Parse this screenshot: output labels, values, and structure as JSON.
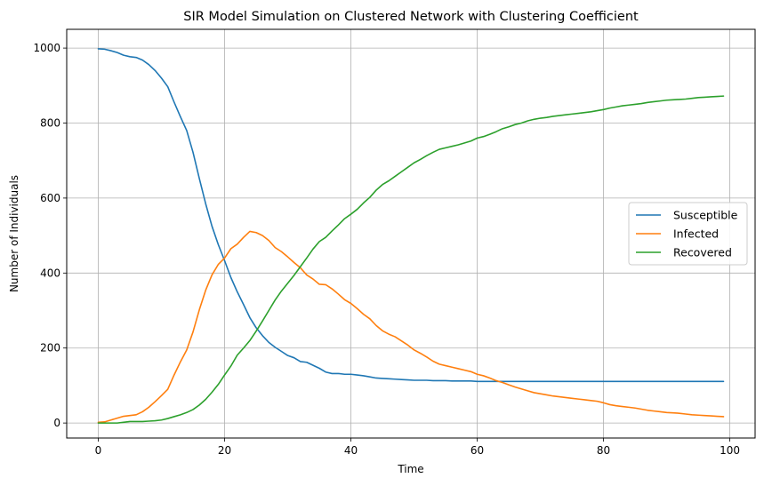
{
  "chart_data": {
    "type": "line",
    "title": "SIR Model Simulation on Clustered Network with Clustering Coefficient",
    "xlabel": "Time",
    "ylabel": "Number of Individuals",
    "xlim": [
      -5,
      104
    ],
    "ylim": [
      -40,
      1050
    ],
    "xticks": [
      0,
      20,
      40,
      60,
      80,
      100
    ],
    "yticks": [
      0,
      200,
      400,
      600,
      800,
      1000
    ],
    "grid": true,
    "legend_position": "center-right",
    "series": [
      {
        "name": "Susceptible",
        "color": "#1f77b4",
        "x": [
          0,
          1,
          2,
          3,
          4,
          5,
          6,
          7,
          8,
          9,
          10,
          11,
          12,
          13,
          14,
          15,
          16,
          17,
          18,
          19,
          20,
          21,
          22,
          23,
          24,
          25,
          26,
          27,
          28,
          29,
          30,
          31,
          32,
          33,
          34,
          35,
          36,
          37,
          38,
          39,
          40,
          41,
          42,
          43,
          44,
          45,
          46,
          47,
          48,
          49,
          50,
          51,
          52,
          53,
          54,
          55,
          56,
          57,
          58,
          59,
          60,
          61,
          62,
          63,
          64,
          65,
          66,
          67,
          68,
          69,
          70,
          71,
          72,
          73,
          74,
          75,
          76,
          77,
          78,
          79,
          80,
          81,
          82,
          83,
          84,
          85,
          86,
          87,
          88,
          89,
          90,
          91,
          92,
          93,
          94,
          95,
          96,
          97,
          98,
          99
        ],
        "values": [
          998,
          997,
          993,
          988,
          981,
          977,
          975,
          968,
          956,
          940,
          920,
          897,
          856,
          817,
          780,
          722,
          652,
          585,
          525,
          476,
          433,
          388,
          350,
          316,
          281,
          254,
          233,
          215,
          202,
          191,
          180,
          174,
          164,
          162,
          154,
          146,
          136,
          132,
          132,
          130,
          130,
          128,
          126,
          123,
          120,
          119,
          118,
          117,
          116,
          115,
          114,
          114,
          114,
          113,
          113,
          113,
          112,
          112,
          112,
          112,
          111,
          111,
          111,
          111,
          111,
          111,
          111,
          111,
          111,
          111,
          111,
          111,
          111,
          111,
          111,
          111,
          111,
          111,
          111,
          111,
          111,
          111,
          111,
          111,
          111,
          111,
          111,
          111,
          111,
          111,
          111,
          111,
          111,
          111,
          111,
          111,
          111,
          111,
          111,
          111
        ]
      },
      {
        "name": "Infected",
        "color": "#ff7f0e",
        "x": [
          0,
          1,
          2,
          3,
          4,
          5,
          6,
          7,
          8,
          9,
          10,
          11,
          12,
          13,
          14,
          15,
          16,
          17,
          18,
          19,
          20,
          21,
          22,
          23,
          24,
          25,
          26,
          27,
          28,
          29,
          30,
          31,
          32,
          33,
          34,
          35,
          36,
          37,
          38,
          39,
          40,
          41,
          42,
          43,
          44,
          45,
          46,
          47,
          48,
          49,
          50,
          51,
          52,
          53,
          54,
          55,
          56,
          57,
          58,
          59,
          60,
          61,
          62,
          63,
          64,
          65,
          66,
          67,
          68,
          69,
          70,
          71,
          72,
          73,
          74,
          75,
          76,
          77,
          78,
          79,
          80,
          81,
          82,
          83,
          84,
          85,
          86,
          87,
          88,
          89,
          90,
          91,
          92,
          93,
          94,
          95,
          96,
          97,
          98,
          99
        ],
        "values": [
          2,
          3,
          8,
          13,
          18,
          20,
          22,
          30,
          42,
          57,
          73,
          90,
          128,
          163,
          195,
          243,
          302,
          354,
          395,
          423,
          440,
          465,
          477,
          495,
          511,
          508,
          500,
          487,
          468,
          457,
          443,
          428,
          414,
          395,
          384,
          370,
          369,
          358,
          344,
          329,
          319,
          305,
          290,
          278,
          260,
          246,
          237,
          230,
          219,
          208,
          195,
          186,
          176,
          165,
          157,
          153,
          149,
          145,
          141,
          137,
          130,
          126,
          120,
          113,
          108,
          102,
          96,
          91,
          86,
          81,
          78,
          75,
          72,
          70,
          68,
          66,
          64,
          62,
          60,
          58,
          54,
          49,
          46,
          44,
          42,
          40,
          37,
          34,
          32,
          30,
          28,
          27,
          26,
          24,
          22,
          21,
          20,
          19,
          18,
          17
        ]
      },
      {
        "name": "Recovered",
        "color": "#2ca02c",
        "x": [
          0,
          1,
          2,
          3,
          4,
          5,
          6,
          7,
          8,
          9,
          10,
          11,
          12,
          13,
          14,
          15,
          16,
          17,
          18,
          19,
          20,
          21,
          22,
          23,
          24,
          25,
          26,
          27,
          28,
          29,
          30,
          31,
          32,
          33,
          34,
          35,
          36,
          37,
          38,
          39,
          40,
          41,
          42,
          43,
          44,
          45,
          46,
          47,
          48,
          49,
          50,
          51,
          52,
          53,
          54,
          55,
          56,
          57,
          58,
          59,
          60,
          61,
          62,
          63,
          64,
          65,
          66,
          67,
          68,
          69,
          70,
          71,
          72,
          73,
          74,
          75,
          76,
          77,
          78,
          79,
          80,
          81,
          82,
          83,
          84,
          85,
          86,
          87,
          88,
          89,
          90,
          91,
          92,
          93,
          94,
          95,
          96,
          97,
          98,
          99
        ],
        "values": [
          0,
          0,
          0,
          0,
          2,
          4,
          4,
          4,
          5,
          6,
          8,
          12,
          17,
          22,
          28,
          36,
          48,
          63,
          82,
          103,
          128,
          152,
          181,
          200,
          220,
          245,
          272,
          300,
          328,
          352,
          373,
          394,
          417,
          440,
          464,
          484,
          495,
          512,
          528,
          545,
          557,
          570,
          587,
          602,
          621,
          636,
          646,
          658,
          670,
          682,
          694,
          703,
          713,
          722,
          730,
          734,
          738,
          742,
          747,
          752,
          760,
          764,
          770,
          777,
          785,
          790,
          796,
          800,
          806,
          810,
          813,
          815,
          818,
          820,
          822,
          824,
          826,
          828,
          830,
          833,
          836,
          840,
          843,
          846,
          848,
          850,
          852,
          855,
          857,
          859,
          861,
          862,
          863,
          864,
          866,
          868,
          869,
          870,
          871,
          872
        ]
      }
    ]
  }
}
